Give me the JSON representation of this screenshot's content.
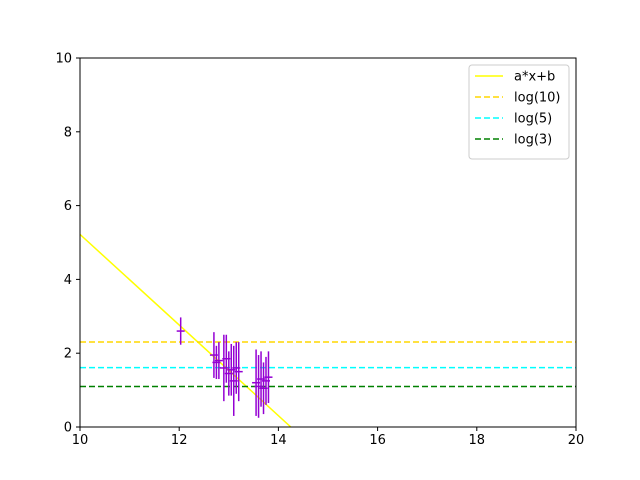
{
  "chart_data": {
    "type": "scatter",
    "title": "",
    "xlabel": "",
    "ylabel": "",
    "xlim": [
      10,
      20
    ],
    "ylim": [
      0,
      10
    ],
    "xticks": [
      "10",
      "12",
      "14",
      "16",
      "18",
      "20"
    ],
    "yticks": [
      "0",
      "2",
      "4",
      "6",
      "8",
      "10"
    ],
    "grid": false,
    "legend_position": "top-right",
    "series": [
      {
        "name": "a*x+b",
        "kind": "line",
        "style": "solid",
        "color": "#ffff00",
        "x": [
          10,
          14.25
        ],
        "y": [
          5.22,
          0
        ]
      },
      {
        "name": "log(10)",
        "kind": "hline",
        "style": "dashed",
        "color": "#ffd700",
        "value": 2.303
      },
      {
        "name": "log(5)",
        "kind": "hline",
        "style": "dashed",
        "color": "#00ffff",
        "value": 1.609
      },
      {
        "name": "log(3)",
        "kind": "hline",
        "style": "dashed",
        "color": "#008000",
        "value": 1.099
      },
      {
        "kind": "errorbar",
        "color": "#9400d3",
        "points": [
          {
            "x": 12.03,
            "y": 2.6,
            "err": 0.37
          },
          {
            "x": 12.7,
            "y": 1.95,
            "err": 0.62
          },
          {
            "x": 12.75,
            "y": 1.75,
            "err": 0.45
          },
          {
            "x": 12.8,
            "y": 1.8,
            "err": 0.5
          },
          {
            "x": 12.9,
            "y": 1.6,
            "err": 0.9
          },
          {
            "x": 12.95,
            "y": 1.85,
            "err": 0.65
          },
          {
            "x": 13.0,
            "y": 1.45,
            "err": 0.6
          },
          {
            "x": 13.05,
            "y": 1.55,
            "err": 0.7
          },
          {
            "x": 13.1,
            "y": 1.25,
            "err": 0.95
          },
          {
            "x": 13.15,
            "y": 1.6,
            "err": 0.7
          },
          {
            "x": 13.2,
            "y": 1.5,
            "err": 0.8
          },
          {
            "x": 13.55,
            "y": 1.2,
            "err": 0.9
          },
          {
            "x": 13.6,
            "y": 1.1,
            "err": 0.85
          },
          {
            "x": 13.65,
            "y": 1.3,
            "err": 0.75
          },
          {
            "x": 13.7,
            "y": 1.05,
            "err": 0.7
          },
          {
            "x": 13.75,
            "y": 1.25,
            "err": 0.65
          },
          {
            "x": 13.8,
            "y": 1.35,
            "err": 0.7
          }
        ]
      }
    ]
  }
}
